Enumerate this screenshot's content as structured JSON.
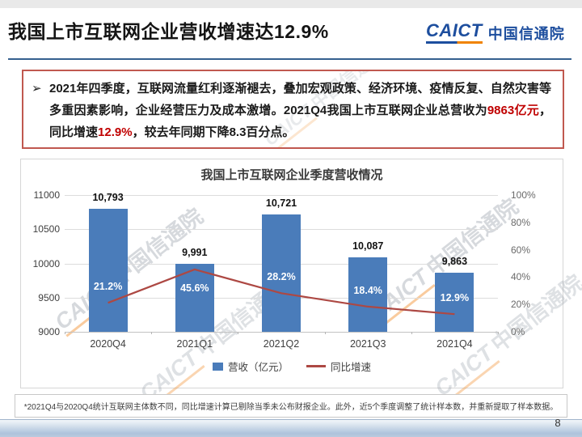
{
  "slide": {
    "title": "我国上市互联网企业营收增速达12.9%",
    "page_number": "8",
    "divider_color": "#35608f",
    "emphasis_color": "#c00000"
  },
  "logo": {
    "acronym": "CAICT",
    "name": "中国信通院",
    "blue": "#1d4e9e",
    "orange": "#f08300"
  },
  "watermark": {
    "acronym": "CAICT",
    "name": "中国信通院"
  },
  "callout": {
    "bullet": "➢",
    "segments": [
      {
        "text": "2021年四季度，互联网流量红利逐渐褪去，叠加宏观政策、经济环境、疫情反复、自然灾害等多重因素影响，企业经营压力及成本激增。2021Q4我国上市互联网企业总营收为",
        "emphasis": false
      },
      {
        "text": "9863亿元",
        "emphasis": true
      },
      {
        "text": "，同比增速",
        "emphasis": false
      },
      {
        "text": "12.9%",
        "emphasis": true
      },
      {
        "text": "，较去年同期下降8.3百分点。",
        "emphasis": false
      }
    ]
  },
  "chart_data": {
    "type": "bar",
    "title": "我国上市互联网企业季度营收情况",
    "categories": [
      "2020Q4",
      "2021Q1",
      "2021Q2",
      "2021Q3",
      "2021Q4"
    ],
    "series": [
      {
        "name": "营收（亿元）",
        "type": "bar",
        "axis": "left",
        "values": [
          10793,
          9991,
          10721,
          10087,
          9863
        ],
        "labels": [
          "10,793",
          "9,991",
          "10,721",
          "10,087",
          "9,863"
        ],
        "color": "#4a7cba"
      },
      {
        "name": "同比增速",
        "type": "line",
        "axis": "right",
        "values": [
          21.2,
          45.6,
          28.2,
          18.4,
          12.9
        ],
        "labels": [
          "21.2%",
          "45.6%",
          "28.2%",
          "18.4%",
          "12.9%"
        ],
        "color": "#ad4843"
      }
    ],
    "left_axis": {
      "min": 9000,
      "max": 11000,
      "ticks": [
        "11000",
        "10500",
        "10000",
        "9500",
        "9000"
      ]
    },
    "right_axis": {
      "min": 0,
      "max": 100,
      "ticks": [
        "100%",
        "80%",
        "60%",
        "40%",
        "20%",
        "0%"
      ]
    },
    "grid": true,
    "legend_position": "bottom"
  },
  "footnote": {
    "text": "*2021Q4与2020Q4统计互联网主体数不同，同比增速计算已剔除当季未公布财报企业。此外，近5个季度调整了统计样本数，并重新提取了样本数据。"
  }
}
